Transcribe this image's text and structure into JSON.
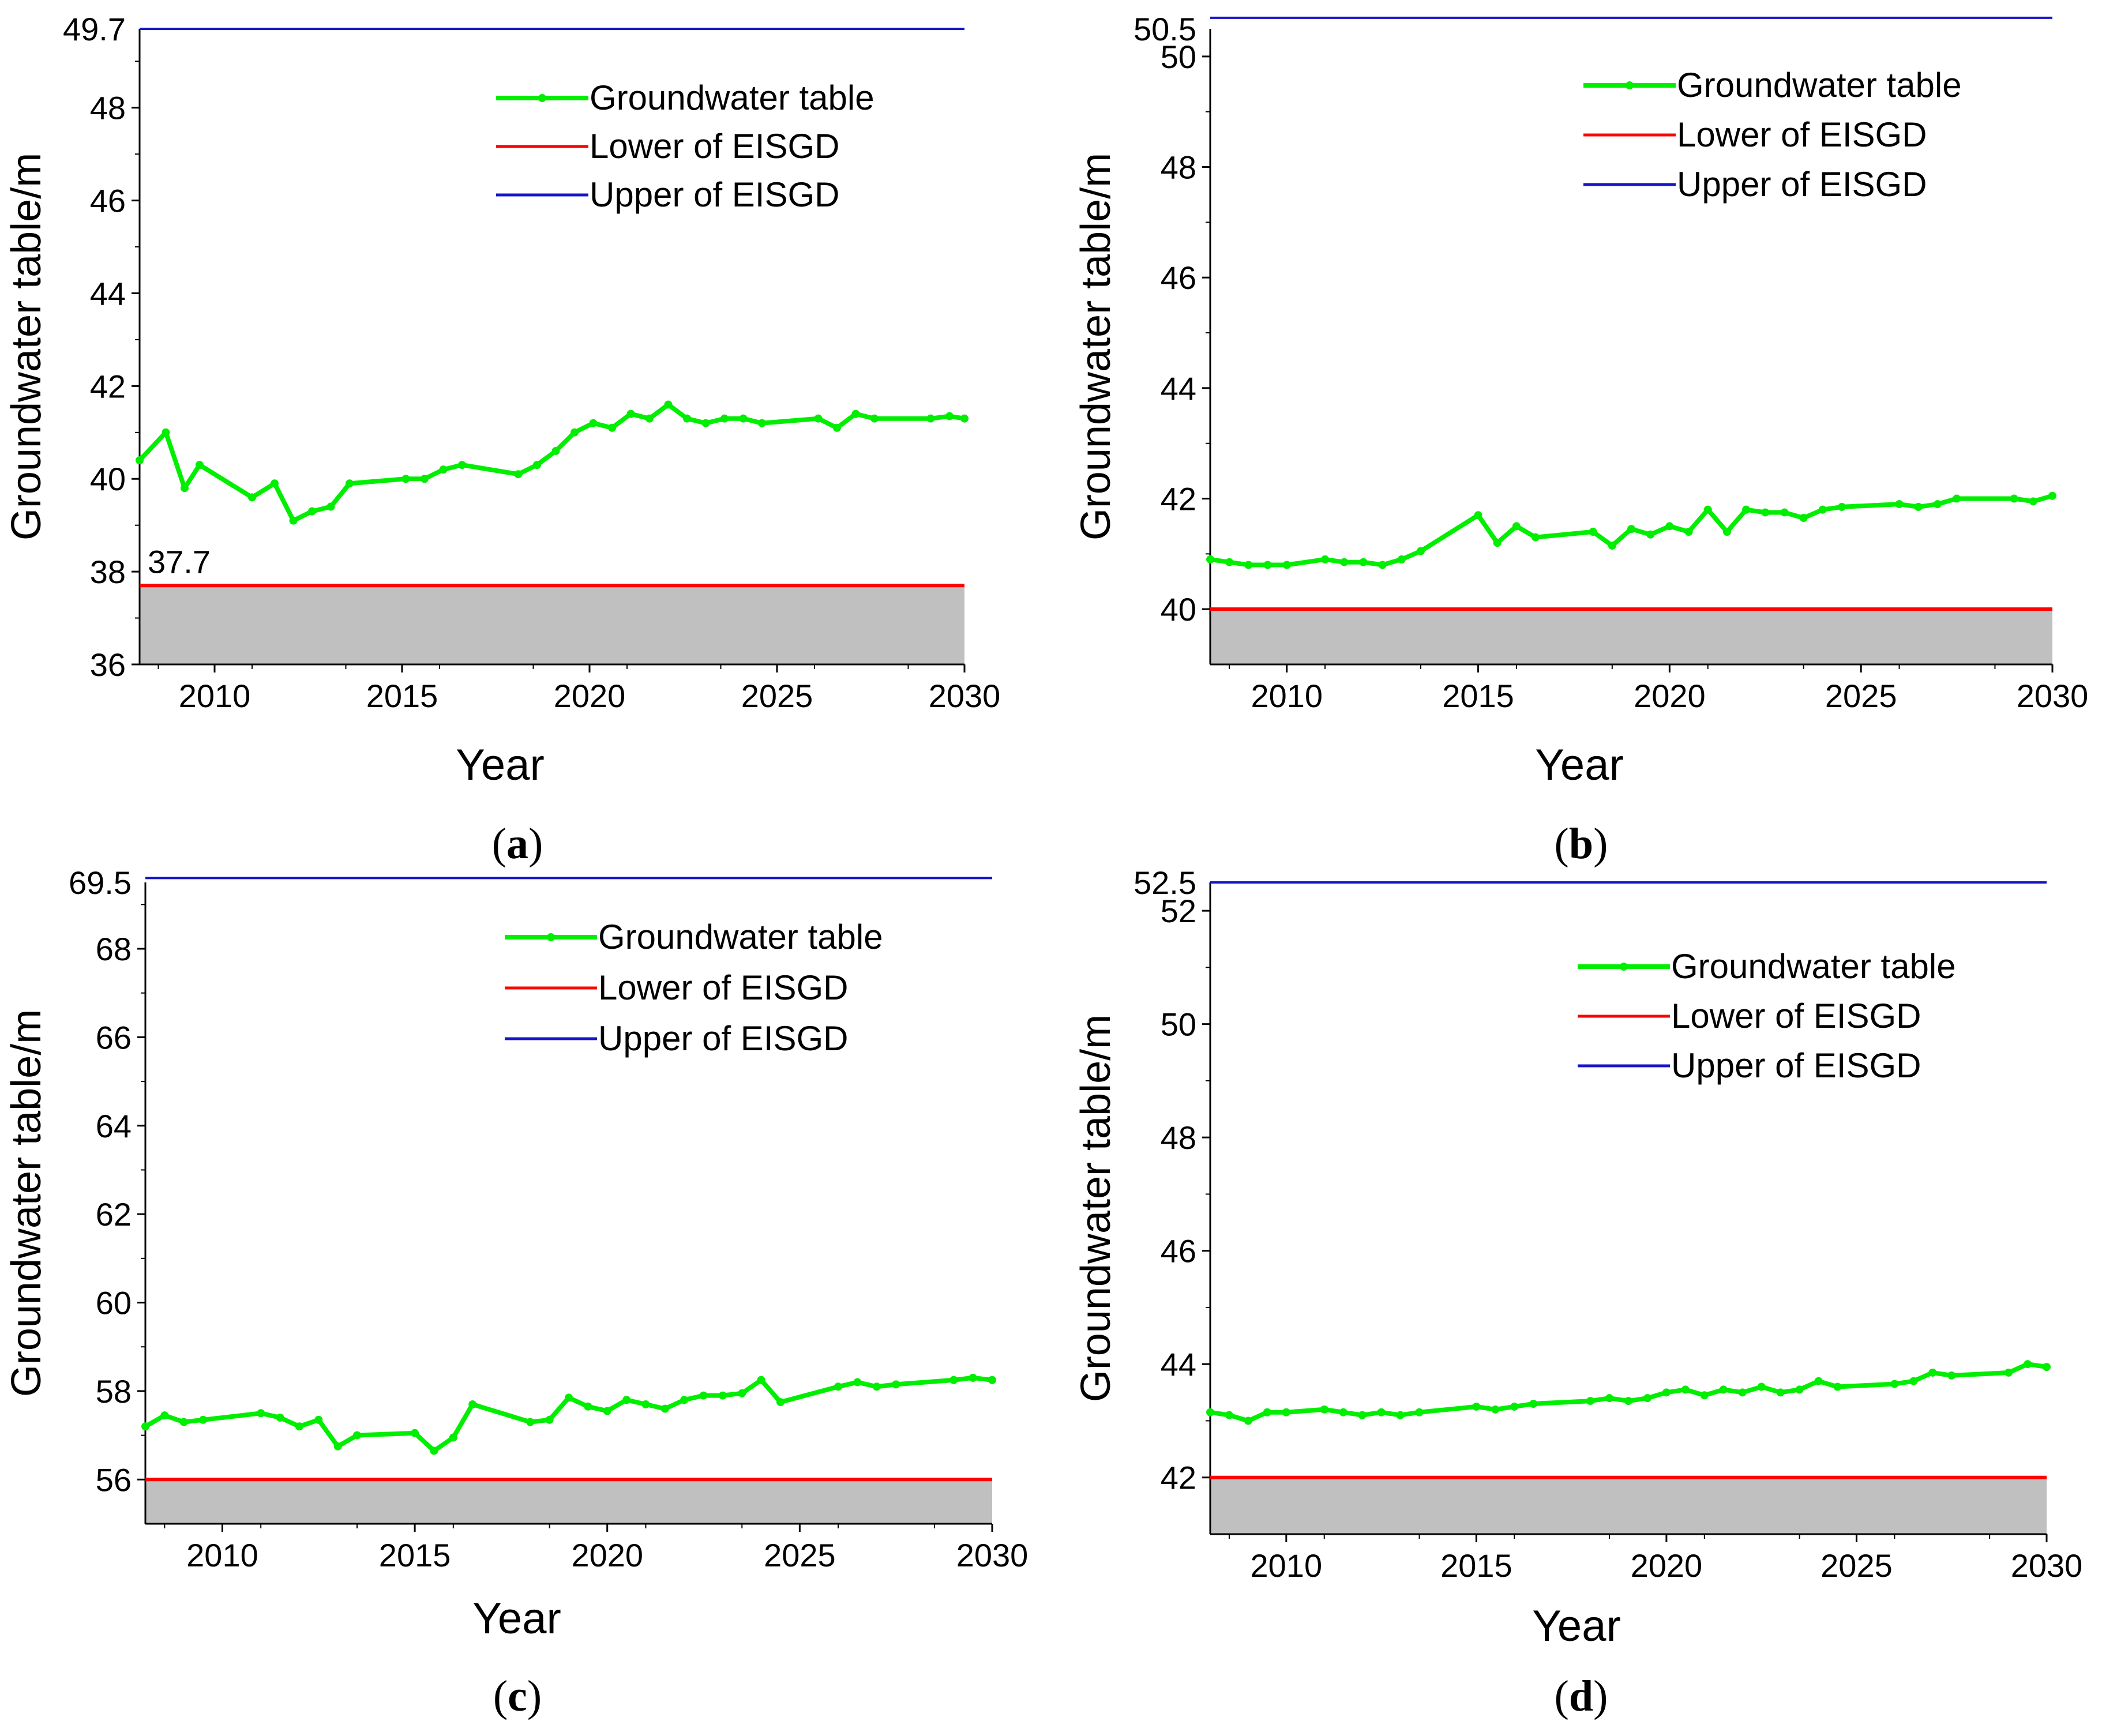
{
  "figure": {
    "captions": [
      "a",
      "b",
      "c",
      "d"
    ]
  },
  "chart_data": [
    {
      "panel": "a",
      "type": "line",
      "xlabel": "Year",
      "ylabel": "Groundwater table/m",
      "xlim": [
        2008,
        2030
      ],
      "ylim": [
        36,
        49.7
      ],
      "xticks": [
        2010,
        2015,
        2020,
        2025,
        2030
      ],
      "yticks": [
        36,
        38,
        40,
        42,
        44,
        46,
        48
      ],
      "ytick_top": 49.7,
      "lower_annotation": "37.7",
      "legend": [
        "Groundwater table",
        "Lower of EISGD",
        "Upper of EISGD"
      ],
      "colors": {
        "series": "#00ee00",
        "lower": "#ff0000",
        "upper": "#1515c8",
        "fill": "#c0c0c0"
      },
      "upper_value": 49.7,
      "lower_value": 37.7,
      "series": [
        {
          "name": "Groundwater table",
          "x": [
            2008,
            2008.7,
            2009.2,
            2009.6,
            2011.0,
            2011.6,
            2012.1,
            2012.6,
            2013.1,
            2013.6,
            2015.1,
            2015.6,
            2016.1,
            2016.6,
            2018.1,
            2018.6,
            2019.1,
            2019.6,
            2020.1,
            2020.6,
            2021.1,
            2021.6,
            2022.1,
            2022.6,
            2023.1,
            2023.6,
            2024.1,
            2024.6,
            2026.1,
            2026.6,
            2027.1,
            2027.6,
            2029.1,
            2029.6,
            2030
          ],
          "values": [
            40.4,
            41.0,
            39.8,
            40.3,
            39.6,
            39.9,
            39.1,
            39.3,
            39.4,
            39.9,
            40.0,
            40.0,
            40.2,
            40.3,
            40.1,
            40.3,
            40.6,
            41.0,
            41.2,
            41.1,
            41.4,
            41.3,
            41.6,
            41.3,
            41.2,
            41.3,
            41.3,
            41.2,
            41.3,
            41.1,
            41.4,
            41.3,
            41.3,
            41.35,
            41.3
          ]
        }
      ]
    },
    {
      "panel": "b",
      "type": "line",
      "xlabel": "Year",
      "ylabel": "Groundwater table/m",
      "xlim": [
        2008,
        2030
      ],
      "ylim": [
        39,
        50.5
      ],
      "xticks": [
        2010,
        2015,
        2020,
        2025,
        2030
      ],
      "yticks": [
        40,
        42,
        44,
        46,
        48,
        50
      ],
      "ytick_top": 50.5,
      "lower_annotation": "",
      "legend": [
        "Groundwater table",
        "Lower of EISGD",
        "Upper of EISGD"
      ],
      "colors": {
        "series": "#00ee00",
        "lower": "#ff0000",
        "upper": "#1515c8",
        "fill": "#c0c0c0"
      },
      "upper_value": 50.7,
      "lower_value": 40,
      "series": [
        {
          "name": "Groundwater table",
          "x": [
            2008,
            2008.5,
            2009.0,
            2009.5,
            2010.0,
            2011.0,
            2011.5,
            2012.0,
            2012.5,
            2013.0,
            2013.5,
            2015.0,
            2015.5,
            2016.0,
            2016.5,
            2018.0,
            2018.5,
            2019.0,
            2019.5,
            2020.0,
            2020.5,
            2021.0,
            2021.5,
            2022.0,
            2022.5,
            2023.0,
            2023.5,
            2024.0,
            2024.5,
            2026.0,
            2026.5,
            2027.0,
            2027.5,
            2029.0,
            2029.5,
            2030
          ],
          "values": [
            40.9,
            40.85,
            40.8,
            40.8,
            40.8,
            40.9,
            40.85,
            40.85,
            40.8,
            40.9,
            41.05,
            41.7,
            41.2,
            41.5,
            41.3,
            41.4,
            41.15,
            41.45,
            41.35,
            41.5,
            41.4,
            41.8,
            41.4,
            41.8,
            41.75,
            41.75,
            41.65,
            41.8,
            41.85,
            41.9,
            41.85,
            41.9,
            42.0,
            42.0,
            41.95,
            42.05
          ]
        }
      ]
    },
    {
      "panel": "c",
      "type": "line",
      "xlabel": "Year",
      "ylabel": "Groundwater table/m",
      "xlim": [
        2008,
        2030
      ],
      "ylim": [
        55,
        69.5
      ],
      "xticks": [
        2010,
        2015,
        2020,
        2025,
        2030
      ],
      "yticks": [
        56,
        58,
        60,
        62,
        64,
        66,
        68
      ],
      "ytick_top": 69.5,
      "lower_annotation": "",
      "legend": [
        "Groundwater table",
        "Lower of EISGD",
        "Upper of EISGD"
      ],
      "colors": {
        "series": "#00ee00",
        "lower": "#ff0000",
        "upper": "#1515c8",
        "fill": "#c0c0c0"
      },
      "upper_value": 69.6,
      "lower_value": 56,
      "series": [
        {
          "name": "Groundwater table",
          "x": [
            2008,
            2008.5,
            2009.0,
            2009.5,
            2011.0,
            2011.5,
            2012.0,
            2012.5,
            2013.0,
            2013.5,
            2015.0,
            2015.5,
            2016.0,
            2016.5,
            2018.0,
            2018.5,
            2019.0,
            2019.5,
            2020.0,
            2020.5,
            2021.0,
            2021.5,
            2022.0,
            2022.5,
            2023.0,
            2023.5,
            2024.0,
            2024.5,
            2026.0,
            2026.5,
            2027.0,
            2027.5,
            2029.0,
            2029.5,
            2030
          ],
          "values": [
            57.2,
            57.45,
            57.3,
            57.35,
            57.5,
            57.4,
            57.2,
            57.35,
            56.75,
            57.0,
            57.05,
            56.65,
            56.95,
            57.7,
            57.3,
            57.35,
            57.85,
            57.65,
            57.55,
            57.8,
            57.7,
            57.6,
            57.8,
            57.9,
            57.9,
            57.95,
            58.25,
            57.75,
            58.1,
            58.2,
            58.1,
            58.15,
            58.25,
            58.3,
            58.25
          ]
        }
      ]
    },
    {
      "panel": "d",
      "type": "line",
      "xlabel": "Year",
      "ylabel": "Groundwater table/m",
      "xlim": [
        2008,
        2030
      ],
      "ylim": [
        41,
        52.5
      ],
      "xticks": [
        2010,
        2015,
        2020,
        2025,
        2030
      ],
      "yticks": [
        42,
        44,
        46,
        48,
        50,
        52
      ],
      "ytick_top": 52.5,
      "lower_annotation": "",
      "legend": [
        "Groundwater table",
        "Lower of EISGD",
        "Upper of EISGD"
      ],
      "colors": {
        "series": "#00ee00",
        "lower": "#ff0000",
        "upper": "#1515c8",
        "fill": "#c0c0c0"
      },
      "upper_value": 52.5,
      "lower_value": 42,
      "series": [
        {
          "name": "Groundwater table",
          "x": [
            2008,
            2008.5,
            2009.0,
            2009.5,
            2010.0,
            2011.0,
            2011.5,
            2012.0,
            2012.5,
            2013.0,
            2013.5,
            2015.0,
            2015.5,
            2016.0,
            2016.5,
            2018.0,
            2018.5,
            2019.0,
            2019.5,
            2020.0,
            2020.5,
            2021.0,
            2021.5,
            2022.0,
            2022.5,
            2023.0,
            2023.5,
            2024.0,
            2024.5,
            2026.0,
            2026.5,
            2027.0,
            2027.5,
            2029.0,
            2029.5,
            2030
          ],
          "values": [
            43.15,
            43.1,
            43.0,
            43.15,
            43.15,
            43.2,
            43.15,
            43.1,
            43.15,
            43.1,
            43.15,
            43.25,
            43.2,
            43.25,
            43.3,
            43.35,
            43.4,
            43.35,
            43.4,
            43.5,
            43.55,
            43.45,
            43.55,
            43.5,
            43.6,
            43.5,
            43.55,
            43.7,
            43.6,
            43.65,
            43.7,
            43.85,
            43.8,
            43.85,
            44.0,
            43.95
          ]
        }
      ]
    }
  ]
}
